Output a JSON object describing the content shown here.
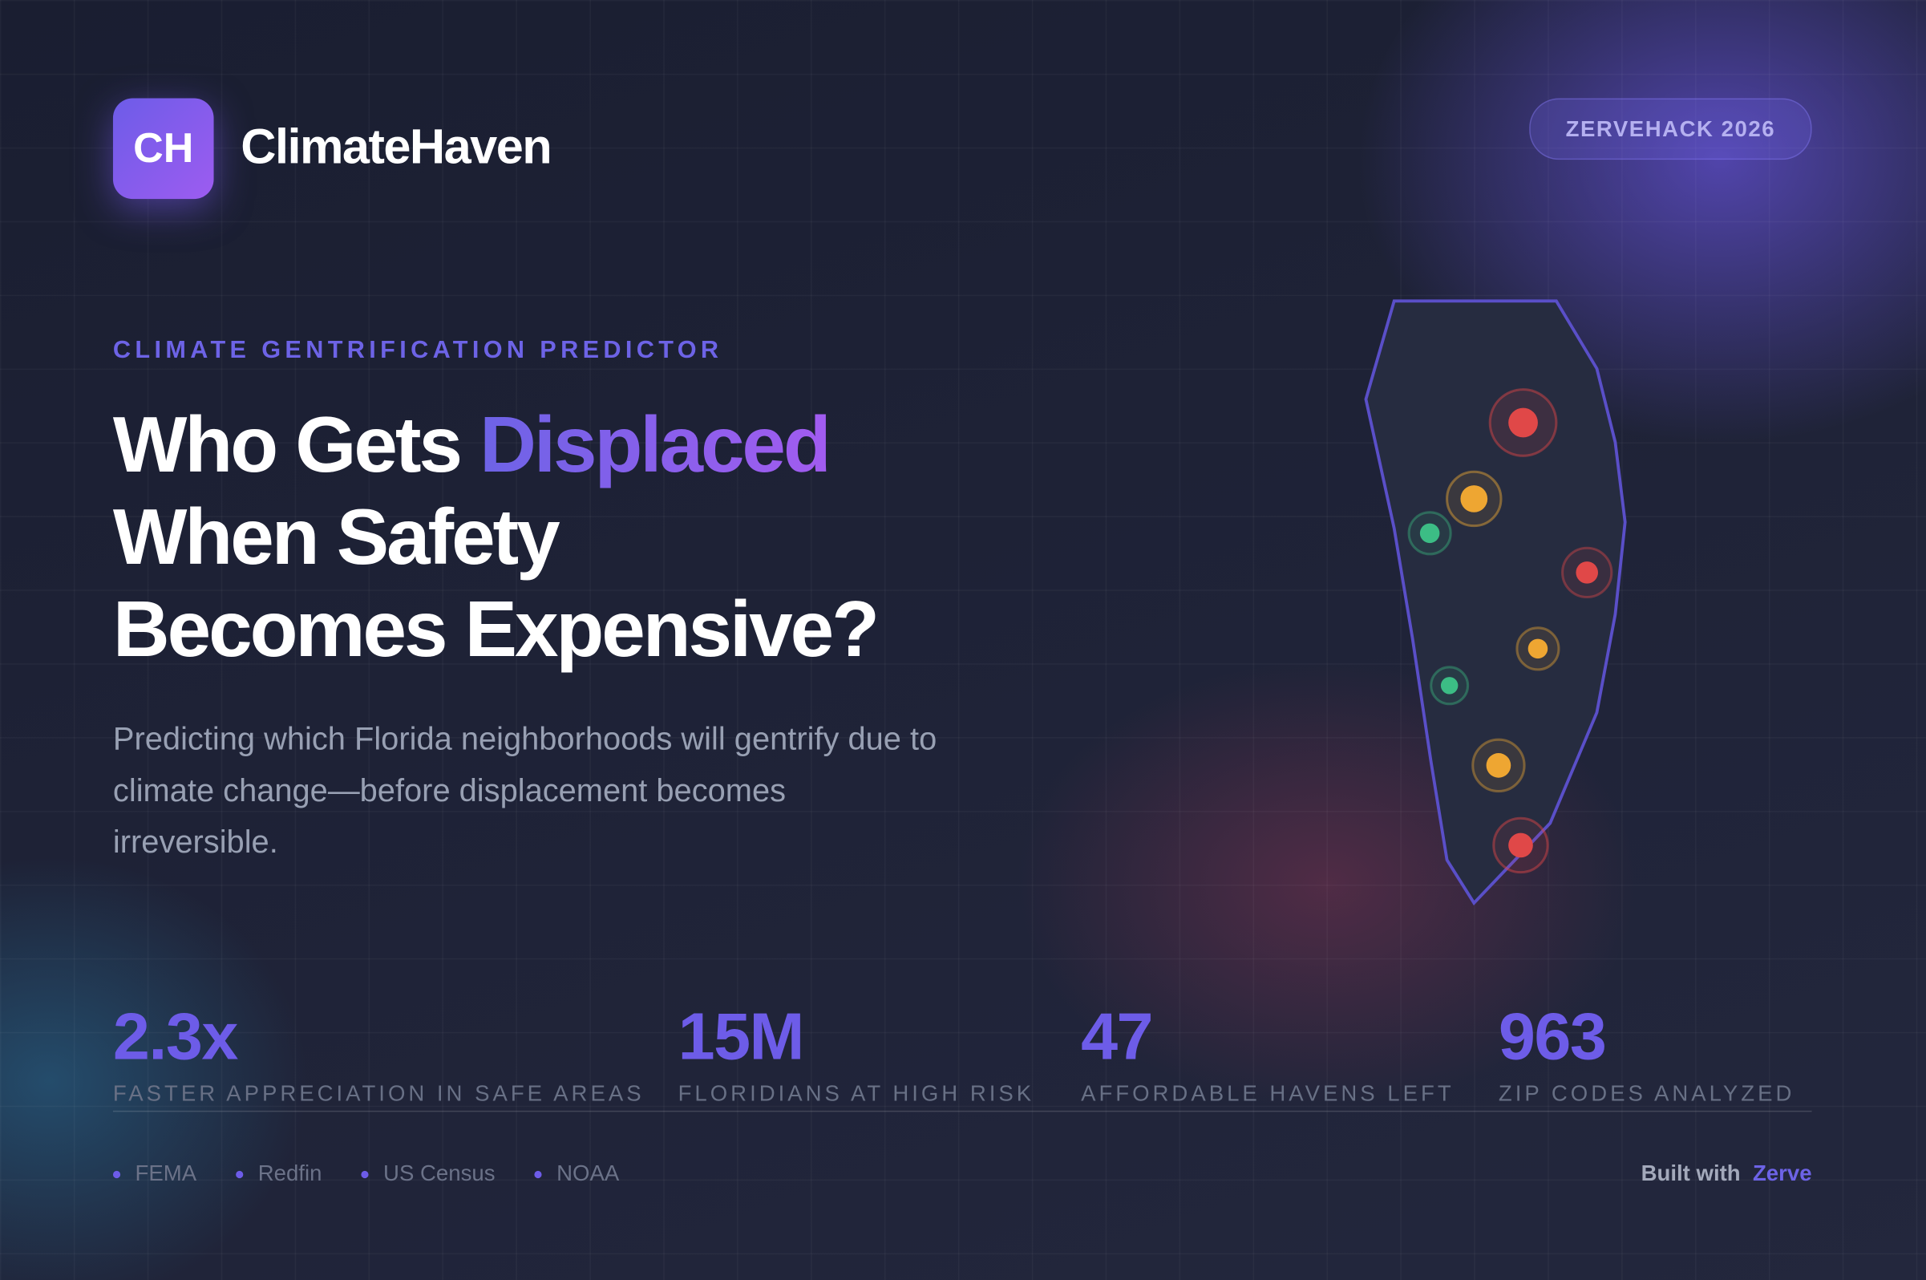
{
  "header": {
    "logo": "CH",
    "brand": "ClimateHaven",
    "badge": "ZERVEHACK 2026"
  },
  "hero": {
    "eyebrow": "CLIMATE GENTRIFICATION PREDICTOR",
    "headline": {
      "part1": "Who Gets ",
      "highlight": "Displaced",
      "line2": "When Safety",
      "line3": "Becomes Expensive?"
    },
    "description": "Predicting which Florida neighborhoods will gentrify due to climate change—before displacement becomes irreversible."
  },
  "stats": [
    {
      "value": "2.3x",
      "label": "FASTER APPRECIATION IN SAFE AREAS"
    },
    {
      "value": "15M",
      "label": "FLORIDIANS AT HIGH RISK"
    },
    {
      "value": "47",
      "label": "AFFORDABLE HAVENS LEFT"
    },
    {
      "value": "963",
      "label": "ZIP CODES ANALYZED"
    }
  ],
  "footer": {
    "sources": [
      "FEMA",
      "Redfin",
      "US Census",
      "NOAA"
    ],
    "built_with": "Built with",
    "platform": "Zerve"
  }
}
